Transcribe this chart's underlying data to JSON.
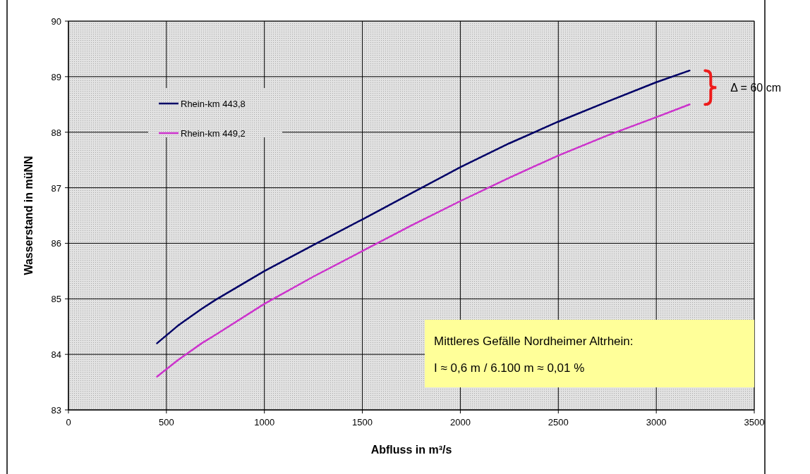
{
  "chart_data": {
    "type": "line",
    "xlabel": "Abfluss in m³/s",
    "ylabel": "Wasserstand in müNN",
    "x": [
      452,
      560,
      680,
      750,
      1000,
      1250,
      1500,
      1750,
      2000,
      2250,
      2500,
      2750,
      3000,
      3170
    ],
    "series": [
      {
        "name": "Rhein-km 443,8",
        "color": "#000066",
        "values": [
          84.2,
          84.52,
          84.82,
          84.98,
          85.5,
          85.97,
          86.43,
          86.9,
          87.37,
          87.8,
          88.19,
          88.55,
          88.9,
          89.11
        ]
      },
      {
        "name": "Rhein-km 449,2",
        "color": "#cc33cc",
        "values": [
          83.6,
          83.9,
          84.2,
          84.35,
          84.91,
          85.4,
          85.86,
          86.32,
          86.76,
          87.18,
          87.58,
          87.94,
          88.27,
          88.5
        ]
      }
    ],
    "xlim": [
      0,
      3500
    ],
    "xticks": [
      0,
      500,
      1000,
      1500,
      2000,
      2500,
      3000,
      3500
    ],
    "ylim": [
      83,
      90
    ],
    "yticks": [
      83,
      84,
      85,
      86,
      87,
      88,
      89,
      90
    ],
    "grid": true,
    "legend": "top left",
    "marker": "none",
    "line_style": "solid",
    "annotations": [
      "Δ = 60 cm",
      "Mittleres Gefälle Nordheimer Altrhein:",
      "I ≈ 0,6 m / 6.100 m ≈ 0,01 %"
    ]
  }
}
